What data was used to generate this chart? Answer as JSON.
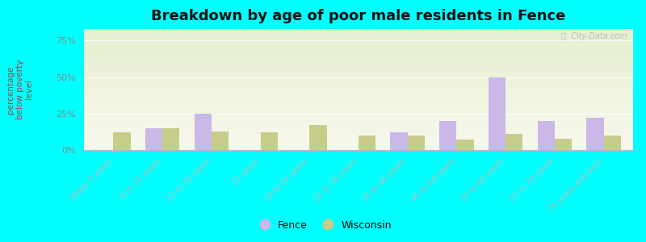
{
  "title": "Breakdown by age of poor male residents in Fence",
  "categories": [
    "Under 5 years",
    "6 to 11 years",
    "12 to 14 years",
    "15 years",
    "18 to 24 years",
    "25 to 34 years",
    "35 to 44 years",
    "45 to 54 years",
    "55 to 64 years",
    "65 to 74 years",
    "75 years and over"
  ],
  "fence_values": [
    0,
    15,
    25,
    0,
    0,
    0,
    12,
    20,
    50,
    20,
    22
  ],
  "wisconsin_values": [
    12,
    15,
    13,
    12,
    17,
    10,
    10,
    7,
    11,
    8,
    10
  ],
  "fence_color": "#c9b8e8",
  "wisconsin_color": "#c8cc8a",
  "ylabel": "percentage\nbelow poverty\nlevel",
  "ylim": [
    0,
    83
  ],
  "yticks": [
    0,
    25,
    50,
    75
  ],
  "ytick_labels": [
    "0%",
    "25%",
    "50%",
    "75%"
  ],
  "fig_background": "#00ffff",
  "bar_width": 0.35,
  "watermark": "ⓘ  City-Data.com"
}
